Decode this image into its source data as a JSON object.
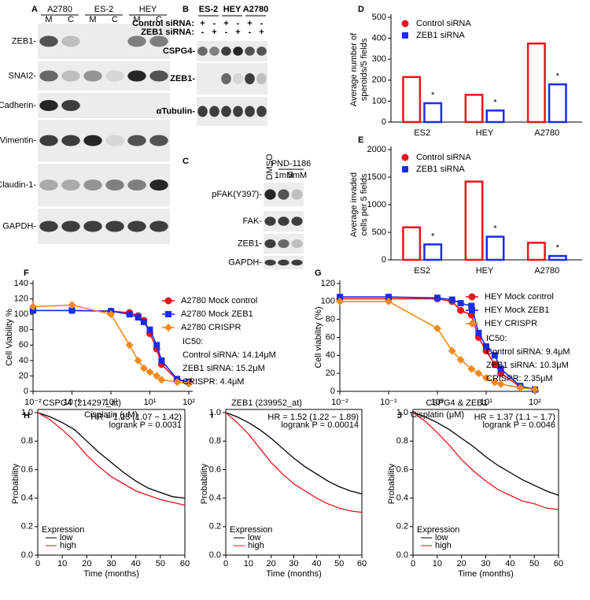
{
  "panel_labels": [
    "A",
    "B",
    "C",
    "D",
    "E",
    "F",
    "G",
    "H",
    "I",
    "J"
  ],
  "blot_a": {
    "cell_lines": [
      "A2780",
      "ES-2",
      "HEY"
    ],
    "lanes": [
      "M",
      "C",
      "M",
      "C",
      "M",
      "C"
    ],
    "rows": [
      "ZEB1-",
      "SNAI2-",
      "E-Cadherin-",
      "Vimentin-",
      "Claudin-1-",
      "GAPDH-"
    ]
  },
  "blot_b": {
    "cell_lines": [
      "ES-2",
      "HEY",
      "A2780"
    ],
    "condition_labels": [
      "Control siRNA:",
      "ZEB1 siRNA:"
    ],
    "control_signs": [
      "+",
      "-",
      "+",
      "-",
      "+",
      "-"
    ],
    "zeb1_signs": [
      "-",
      "+",
      "-",
      "+",
      "-",
      "+"
    ],
    "rows": [
      "CSPG4-",
      "ZEB1-",
      "αTubulin-"
    ]
  },
  "blot_c": {
    "control": "DMSO",
    "treatment": "PND-1186",
    "doses": [
      "1mM",
      "5mM"
    ],
    "rows": [
      "pFAK(Y397)-",
      "FAK-",
      "ZEB1-",
      "GAPDH-"
    ]
  },
  "chart_data": [
    {
      "type": "bar",
      "ylabel": [
        "Average number of",
        "speroids/5 fields"
      ],
      "categories": [
        "ES2",
        "HEY",
        "A2780"
      ],
      "series": [
        {
          "name": "Control siRNA",
          "color": "#e8141b",
          "marker": "circle",
          "values": [
            215,
            130,
            375
          ]
        },
        {
          "name": "ZEB1 siRNA",
          "color": "#1a2ce8",
          "marker": "square",
          "values": [
            90,
            55,
            180
          ]
        }
      ],
      "ylim": [
        0,
        500
      ],
      "yticks": [
        0,
        100,
        200,
        300,
        400,
        500
      ],
      "annotations": [
        "*",
        "*",
        "*"
      ]
    },
    {
      "type": "bar",
      "ylabel": [
        "Average invaded",
        "cells per 5 fields"
      ],
      "categories": [
        "ES2",
        "HEY",
        "A2780"
      ],
      "series": [
        {
          "name": "Control siRNA",
          "color": "#e8141b",
          "marker": "circle",
          "values": [
            590,
            1420,
            310
          ]
        },
        {
          "name": "ZEB1 siRNA",
          "color": "#1a2ce8",
          "marker": "square",
          "values": [
            280,
            420,
            70
          ]
        }
      ],
      "ylim": [
        0,
        2000
      ],
      "yticks": [
        0,
        500,
        1000,
        1500,
        2000
      ],
      "annotations": [
        "*",
        "*",
        "*"
      ]
    },
    {
      "type": "dose",
      "log_x": true,
      "xlabel": "Cisplatin (μM)",
      "ylabel": "Cell Viability %",
      "x": [
        0.01,
        0.1,
        1,
        3,
        5,
        7,
        10,
        15,
        20,
        50,
        100
      ],
      "series": [
        {
          "name": "A2780 Mock control",
          "color": "#e8141b",
          "marker": "circle",
          "values": [
            105,
            105,
            104,
            102,
            98,
            92,
            75,
            55,
            35,
            15,
            12
          ]
        },
        {
          "name": "A2780 Mock ZEB1",
          "color": "#1a2ce8",
          "marker": "square",
          "values": [
            105,
            105,
            104,
            100,
            96,
            90,
            80,
            60,
            40,
            16,
            12
          ]
        },
        {
          "name": "A2780 CRISPR",
          "color": "#f08a1c",
          "marker": "diamond",
          "values": [
            110,
            112,
            100,
            60,
            40,
            30,
            25,
            20,
            15,
            12,
            10
          ]
        }
      ],
      "xlim": [
        0.01,
        100
      ],
      "xticks": [
        {
          "value": 0.01,
          "label": "10⁻²"
        },
        {
          "value": 0.1,
          "label": "10⁻¹"
        },
        {
          "value": 1,
          "label": "10⁰"
        },
        {
          "value": 10,
          "label": "10¹"
        },
        {
          "value": 100,
          "label": "10²"
        }
      ],
      "ylim": [
        0,
        140
      ],
      "yticks": [
        0,
        20,
        40,
        60,
        80,
        100,
        120,
        140
      ],
      "annotations": [
        "IC50:",
        "Control siRNA: 14.14μM",
        "ZEB1 siRNA: 15.2μM",
        "CRISPR: 4.4μM"
      ]
    },
    {
      "type": "dose",
      "log_x": true,
      "xlabel": "Cisplatin (μM)",
      "ylabel": "Cell viability (%)",
      "x": [
        0.01,
        0.1,
        1,
        2,
        3,
        5,
        7,
        10,
        15,
        20,
        50,
        100
      ],
      "series": [
        {
          "name": "HEY Mock control",
          "color": "#e8141b",
          "marker": "circle",
          "values": [
            103,
            103,
            103,
            100,
            90,
            85,
            60,
            45,
            30,
            20,
            5,
            2
          ]
        },
        {
          "name": "HEY Mock ZEB1",
          "color": "#1a2ce8",
          "marker": "square",
          "values": [
            105,
            105,
            104,
            102,
            98,
            95,
            65,
            50,
            40,
            25,
            6,
            2
          ]
        },
        {
          "name": "HEY CRISPR",
          "color": "#f08a1c",
          "marker": "diamond",
          "values": [
            100,
            100,
            70,
            45,
            35,
            25,
            20,
            15,
            10,
            8,
            4,
            2
          ]
        }
      ],
      "xlim": [
        0.01,
        100
      ],
      "xticks": [
        {
          "value": 0.01,
          "label": "10⁻²"
        },
        {
          "value": 0.1,
          "label": "10⁻¹"
        },
        {
          "value": 1,
          "label": "10⁰"
        },
        {
          "value": 10,
          "label": "10¹"
        },
        {
          "value": 100,
          "label": "10²"
        }
      ],
      "ylim": [
        0,
        120
      ],
      "yticks": [
        0,
        20,
        40,
        60,
        80,
        100,
        120
      ],
      "annotations": [
        "IC50:",
        "Control siRNA: 9.4μM",
        "ZEB1 siRNA: 10.3μM",
        "CRISPR: 2.35μM"
      ]
    },
    {
      "type": "km",
      "title": "CSPG4   (214297_at)",
      "annotations": [
        "HR = 1.23 (1.07 − 1.42)",
        "logrank P = 0.0031"
      ],
      "legend_title": "Expression",
      "xlabel": "Time (months)",
      "ylabel": "Probability",
      "x": [
        0,
        5,
        10,
        15,
        20,
        25,
        30,
        35,
        40,
        45,
        50,
        55,
        60
      ],
      "series": [
        {
          "name": "low",
          "color": "#000000",
          "values": [
            1,
            0.97,
            0.93,
            0.88,
            0.8,
            0.72,
            0.65,
            0.58,
            0.52,
            0.47,
            0.44,
            0.41,
            0.4
          ]
        },
        {
          "name": "high",
          "color": "#e8141b",
          "values": [
            1,
            0.95,
            0.88,
            0.8,
            0.7,
            0.62,
            0.55,
            0.5,
            0.45,
            0.42,
            0.39,
            0.37,
            0.35
          ]
        }
      ],
      "xlim": [
        0,
        60
      ],
      "xticks": [
        0,
        10,
        20,
        30,
        40,
        50,
        60
      ],
      "ylim": [
        0,
        1
      ],
      "yticks": [
        {
          "value": 0,
          "label": "0.0"
        },
        {
          "value": 0.2,
          "label": "0.2"
        },
        {
          "value": 0.4,
          "label": "0.4"
        },
        {
          "value": 0.6,
          "label": "0.6"
        },
        {
          "value": 0.8,
          "label": "0.8"
        },
        {
          "value": 1,
          "label": "1.0"
        }
      ]
    },
    {
      "type": "km",
      "title": "ZEB1   (239952_at)",
      "annotations": [
        "HR = 1.52 (1.22 − 1.89)",
        "logrank P = 0.00014"
      ],
      "legend_title": "Expression",
      "xlabel": "Time (months)",
      "ylabel": "Probability",
      "x": [
        0,
        5,
        10,
        15,
        20,
        25,
        30,
        35,
        40,
        45,
        50,
        55,
        60
      ],
      "series": [
        {
          "name": "low",
          "color": "#000000",
          "values": [
            1,
            0.97,
            0.93,
            0.88,
            0.82,
            0.75,
            0.68,
            0.62,
            0.57,
            0.52,
            0.48,
            0.45,
            0.43
          ]
        },
        {
          "name": "high",
          "color": "#e8141b",
          "values": [
            1,
            0.93,
            0.85,
            0.75,
            0.65,
            0.57,
            0.5,
            0.45,
            0.4,
            0.36,
            0.33,
            0.31,
            0.3
          ]
        }
      ],
      "xlim": [
        0,
        60
      ],
      "xticks": [
        0,
        10,
        20,
        30,
        40,
        50,
        60
      ],
      "ylim": [
        0,
        1
      ],
      "yticks": [
        {
          "value": 0,
          "label": "0.0"
        },
        {
          "value": 0.2,
          "label": "0.2"
        },
        {
          "value": 0.4,
          "label": "0.4"
        },
        {
          "value": 0.6,
          "label": "0.6"
        },
        {
          "value": 0.8,
          "label": "0.8"
        },
        {
          "value": 1,
          "label": "1.0"
        }
      ]
    },
    {
      "type": "km",
      "title": "CSPG4 & ZEB1",
      "annotations": [
        "HR = 1.37 (1.1 − 1.7)",
        "logrank P = 0.0046"
      ],
      "legend_title": "Expression",
      "xlabel": "Time (months)",
      "ylabel": "Probability",
      "x": [
        0,
        5,
        10,
        15,
        20,
        25,
        30,
        35,
        40,
        45,
        50,
        55,
        60
      ],
      "series": [
        {
          "name": "low",
          "color": "#000000",
          "values": [
            1,
            0.97,
            0.93,
            0.88,
            0.82,
            0.76,
            0.69,
            0.63,
            0.58,
            0.53,
            0.49,
            0.45,
            0.42
          ]
        },
        {
          "name": "high",
          "color": "#e8141b",
          "values": [
            1,
            0.94,
            0.86,
            0.77,
            0.67,
            0.59,
            0.52,
            0.46,
            0.42,
            0.38,
            0.36,
            0.33,
            0.32
          ]
        }
      ],
      "xlim": [
        0,
        60
      ],
      "xticks": [
        0,
        10,
        20,
        30,
        40,
        50,
        60
      ],
      "ylim": [
        0,
        1
      ],
      "yticks": [
        {
          "value": 0,
          "label": "0.0"
        },
        {
          "value": 0.2,
          "label": "0.2"
        },
        {
          "value": 0.4,
          "label": "0.4"
        },
        {
          "value": 0.6,
          "label": "0.6"
        },
        {
          "value": 0.8,
          "label": "0.8"
        },
        {
          "value": 1,
          "label": "1.0"
        }
      ]
    }
  ]
}
